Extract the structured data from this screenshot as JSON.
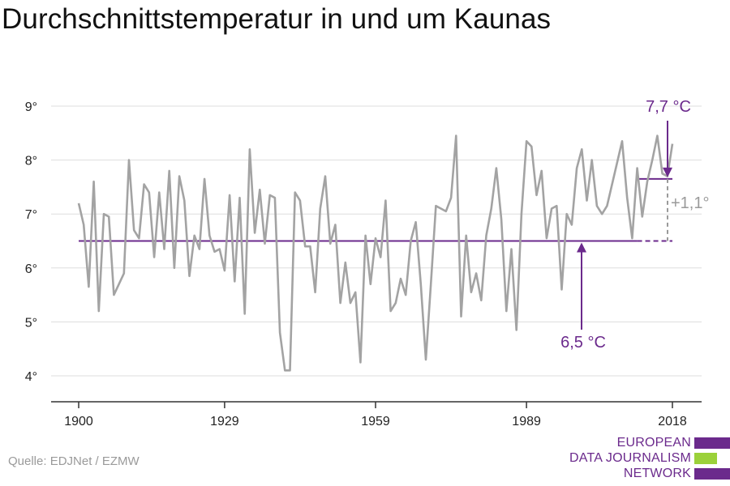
{
  "title": "Durchschnittstemperatur in und um Kaunas",
  "source": "Quelle: EDJNet / EZMW",
  "logo": {
    "lines": [
      "EUROPEAN",
      "DATA JOURNALISM",
      "NETWORK"
    ],
    "colors": [
      "#6b2a8c",
      "#9bd13a",
      "#6b2a8c"
    ]
  },
  "colors": {
    "series": "#a3a3a3",
    "reference": "#6b2a8c",
    "diff": "#9a9a9a",
    "grid": "#dddddd",
    "axis": "#333333"
  },
  "chart_data": {
    "type": "line",
    "title": "Durchschnittstemperatur in und um Kaunas",
    "xlim": [
      1900,
      2018
    ],
    "ylim": [
      3.5,
      9.5
    ],
    "yticks": [
      4,
      5,
      6,
      7,
      8,
      9
    ],
    "ytick_labels": [
      "4°",
      "5°",
      "6°",
      "7°",
      "8°",
      "9°"
    ],
    "xticks": [
      1900,
      1929,
      1959,
      1989,
      2018
    ],
    "xtick_labels": [
      "1900",
      "1929",
      "1959",
      "1989",
      "2018"
    ],
    "grid": true,
    "series": [
      {
        "x": [
          1900,
          1901,
          1902,
          1903,
          1904,
          1905,
          1906,
          1907,
          1908,
          1909,
          1910,
          1911,
          1912,
          1913,
          1914,
          1915,
          1916,
          1917,
          1918,
          1919,
          1920,
          1921,
          1922,
          1923,
          1924,
          1925,
          1926,
          1927,
          1928,
          1929,
          1930,
          1931,
          1932,
          1933,
          1934,
          1935,
          1936,
          1937,
          1938,
          1939,
          1940,
          1941,
          1942,
          1943,
          1944,
          1945,
          1946,
          1947,
          1948,
          1949,
          1950,
          1951,
          1952,
          1953,
          1954,
          1955,
          1956,
          1957,
          1958,
          1959,
          1960,
          1961,
          1962,
          1963,
          1964,
          1965,
          1966,
          1967,
          1968,
          1969,
          1970,
          1971,
          1972,
          1973,
          1974,
          1975,
          1976,
          1977,
          1978,
          1979,
          1980,
          1981,
          1982,
          1983,
          1984,
          1985,
          1986,
          1987,
          1988,
          1989,
          1990,
          1991,
          1992,
          1993,
          1994,
          1995,
          1996,
          1997,
          1998,
          1999,
          2000,
          2001,
          2002,
          2003,
          2004,
          2005,
          2006,
          2007,
          2008,
          2009,
          2010,
          2011,
          2012,
          2013,
          2014,
          2015,
          2016,
          2017,
          2018
        ],
        "values": [
          7.2,
          6.8,
          5.65,
          7.6,
          5.2,
          7.0,
          6.95,
          5.5,
          5.7,
          5.9,
          8.0,
          6.7,
          6.55,
          7.55,
          7.4,
          6.2,
          7.4,
          6.35,
          7.8,
          6.0,
          7.7,
          7.25,
          5.85,
          6.6,
          6.35,
          7.65,
          6.6,
          6.3,
          6.35,
          5.95,
          7.35,
          5.75,
          7.3,
          5.15,
          8.2,
          6.65,
          7.45,
          6.45,
          7.35,
          7.3,
          4.8,
          4.1,
          4.1,
          7.4,
          7.25,
          6.4,
          6.4,
          5.55,
          7.1,
          7.7,
          6.45,
          6.8,
          5.35,
          6.1,
          5.35,
          5.55,
          4.25,
          6.6,
          5.7,
          6.55,
          6.2,
          7.25,
          5.2,
          5.35,
          5.8,
          5.5,
          6.5,
          6.85,
          5.7,
          4.3,
          5.7,
          7.15,
          7.1,
          7.05,
          7.3,
          8.45,
          5.1,
          6.6,
          5.55,
          5.9,
          5.4,
          6.6,
          7.1,
          7.85,
          6.9,
          5.2,
          6.35,
          4.85,
          7.0,
          8.35,
          8.25,
          7.35,
          7.8,
          6.55,
          7.1,
          7.15,
          5.6,
          7.0,
          6.8,
          7.85,
          8.2,
          7.25,
          8.0,
          7.15,
          7.0,
          7.15,
          7.55,
          7.95,
          8.35,
          7.3,
          6.55,
          7.85,
          6.95,
          7.6,
          8.0,
          8.45,
          7.75,
          7.7,
          8.3
        ]
      }
    ],
    "reference_lines": [
      {
        "label": "6,5 °C",
        "value": 6.5,
        "from": 1900,
        "to": 2011,
        "extended_to": 2018,
        "style": "solid"
      },
      {
        "label": "7,7 °C",
        "value": 7.65,
        "from": 2011,
        "to": 2018,
        "style": "solid"
      }
    ],
    "annotations": [
      {
        "text": "7,7 °C"
      },
      {
        "text": "6,5 °C"
      },
      {
        "text": "+1,1°"
      }
    ]
  }
}
